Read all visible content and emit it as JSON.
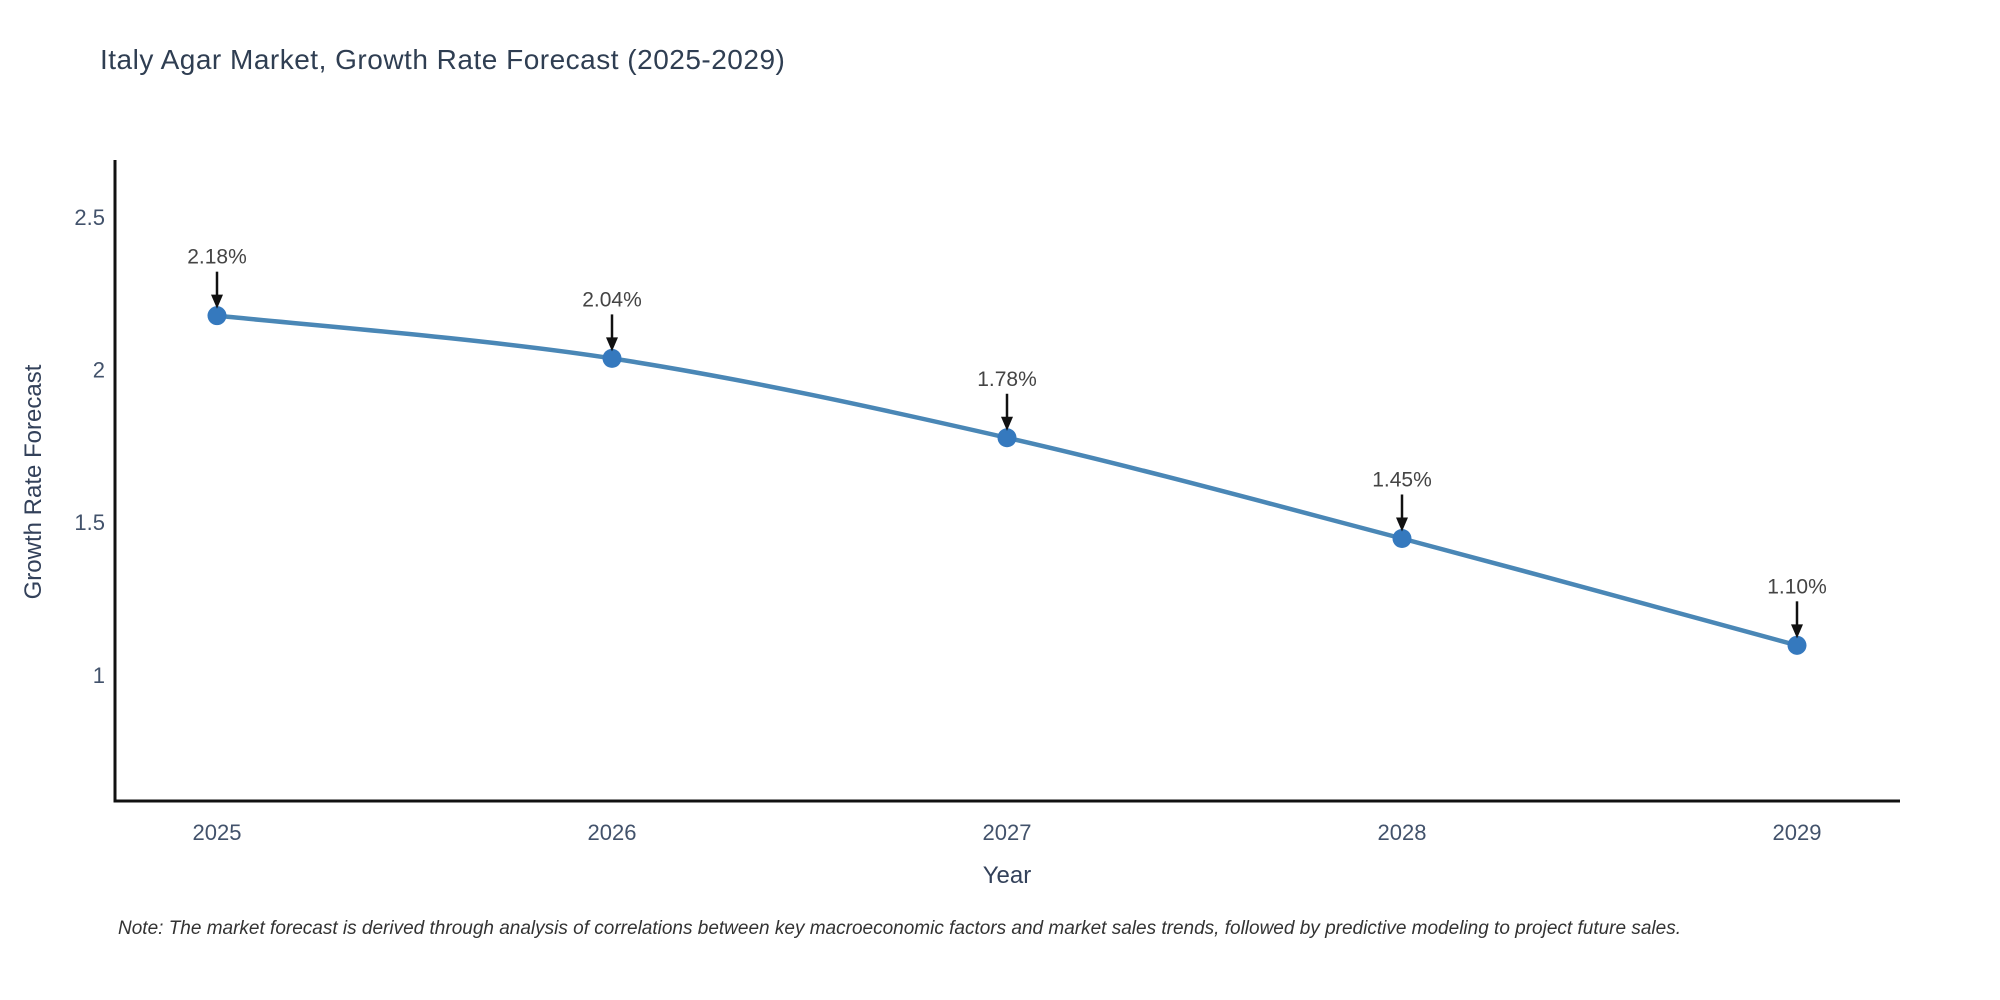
{
  "chart_data": {
    "type": "line",
    "title": "Italy Agar Market, Growth Rate Forecast (2025-2029)",
    "xlabel": "Year",
    "ylabel": "Growth Rate Forecast",
    "categories": [
      "2025",
      "2026",
      "2027",
      "2028",
      "2029"
    ],
    "values": [
      2.18,
      2.04,
      1.78,
      1.45,
      1.1
    ],
    "point_labels": [
      "2.18%",
      "2.04%",
      "1.78%",
      "1.45%",
      "1.10%"
    ],
    "yticks": [
      "2.5",
      "2",
      "1.5",
      "1"
    ],
    "ytick_values": [
      2.5,
      2,
      1.5,
      1
    ],
    "ylim": [
      0.59,
      2.69
    ],
    "grid": false,
    "legend_position": "none",
    "line_color": "#4a87b6",
    "marker_color": "#3579be",
    "axis_color": "#111111",
    "tick_color": "#42526b",
    "annotation_color": "#444444",
    "note": "Note: The market forecast is derived through analysis of correlations between key macroeconomic factors and market sales trends, followed by predictive modeling to project future sales."
  }
}
